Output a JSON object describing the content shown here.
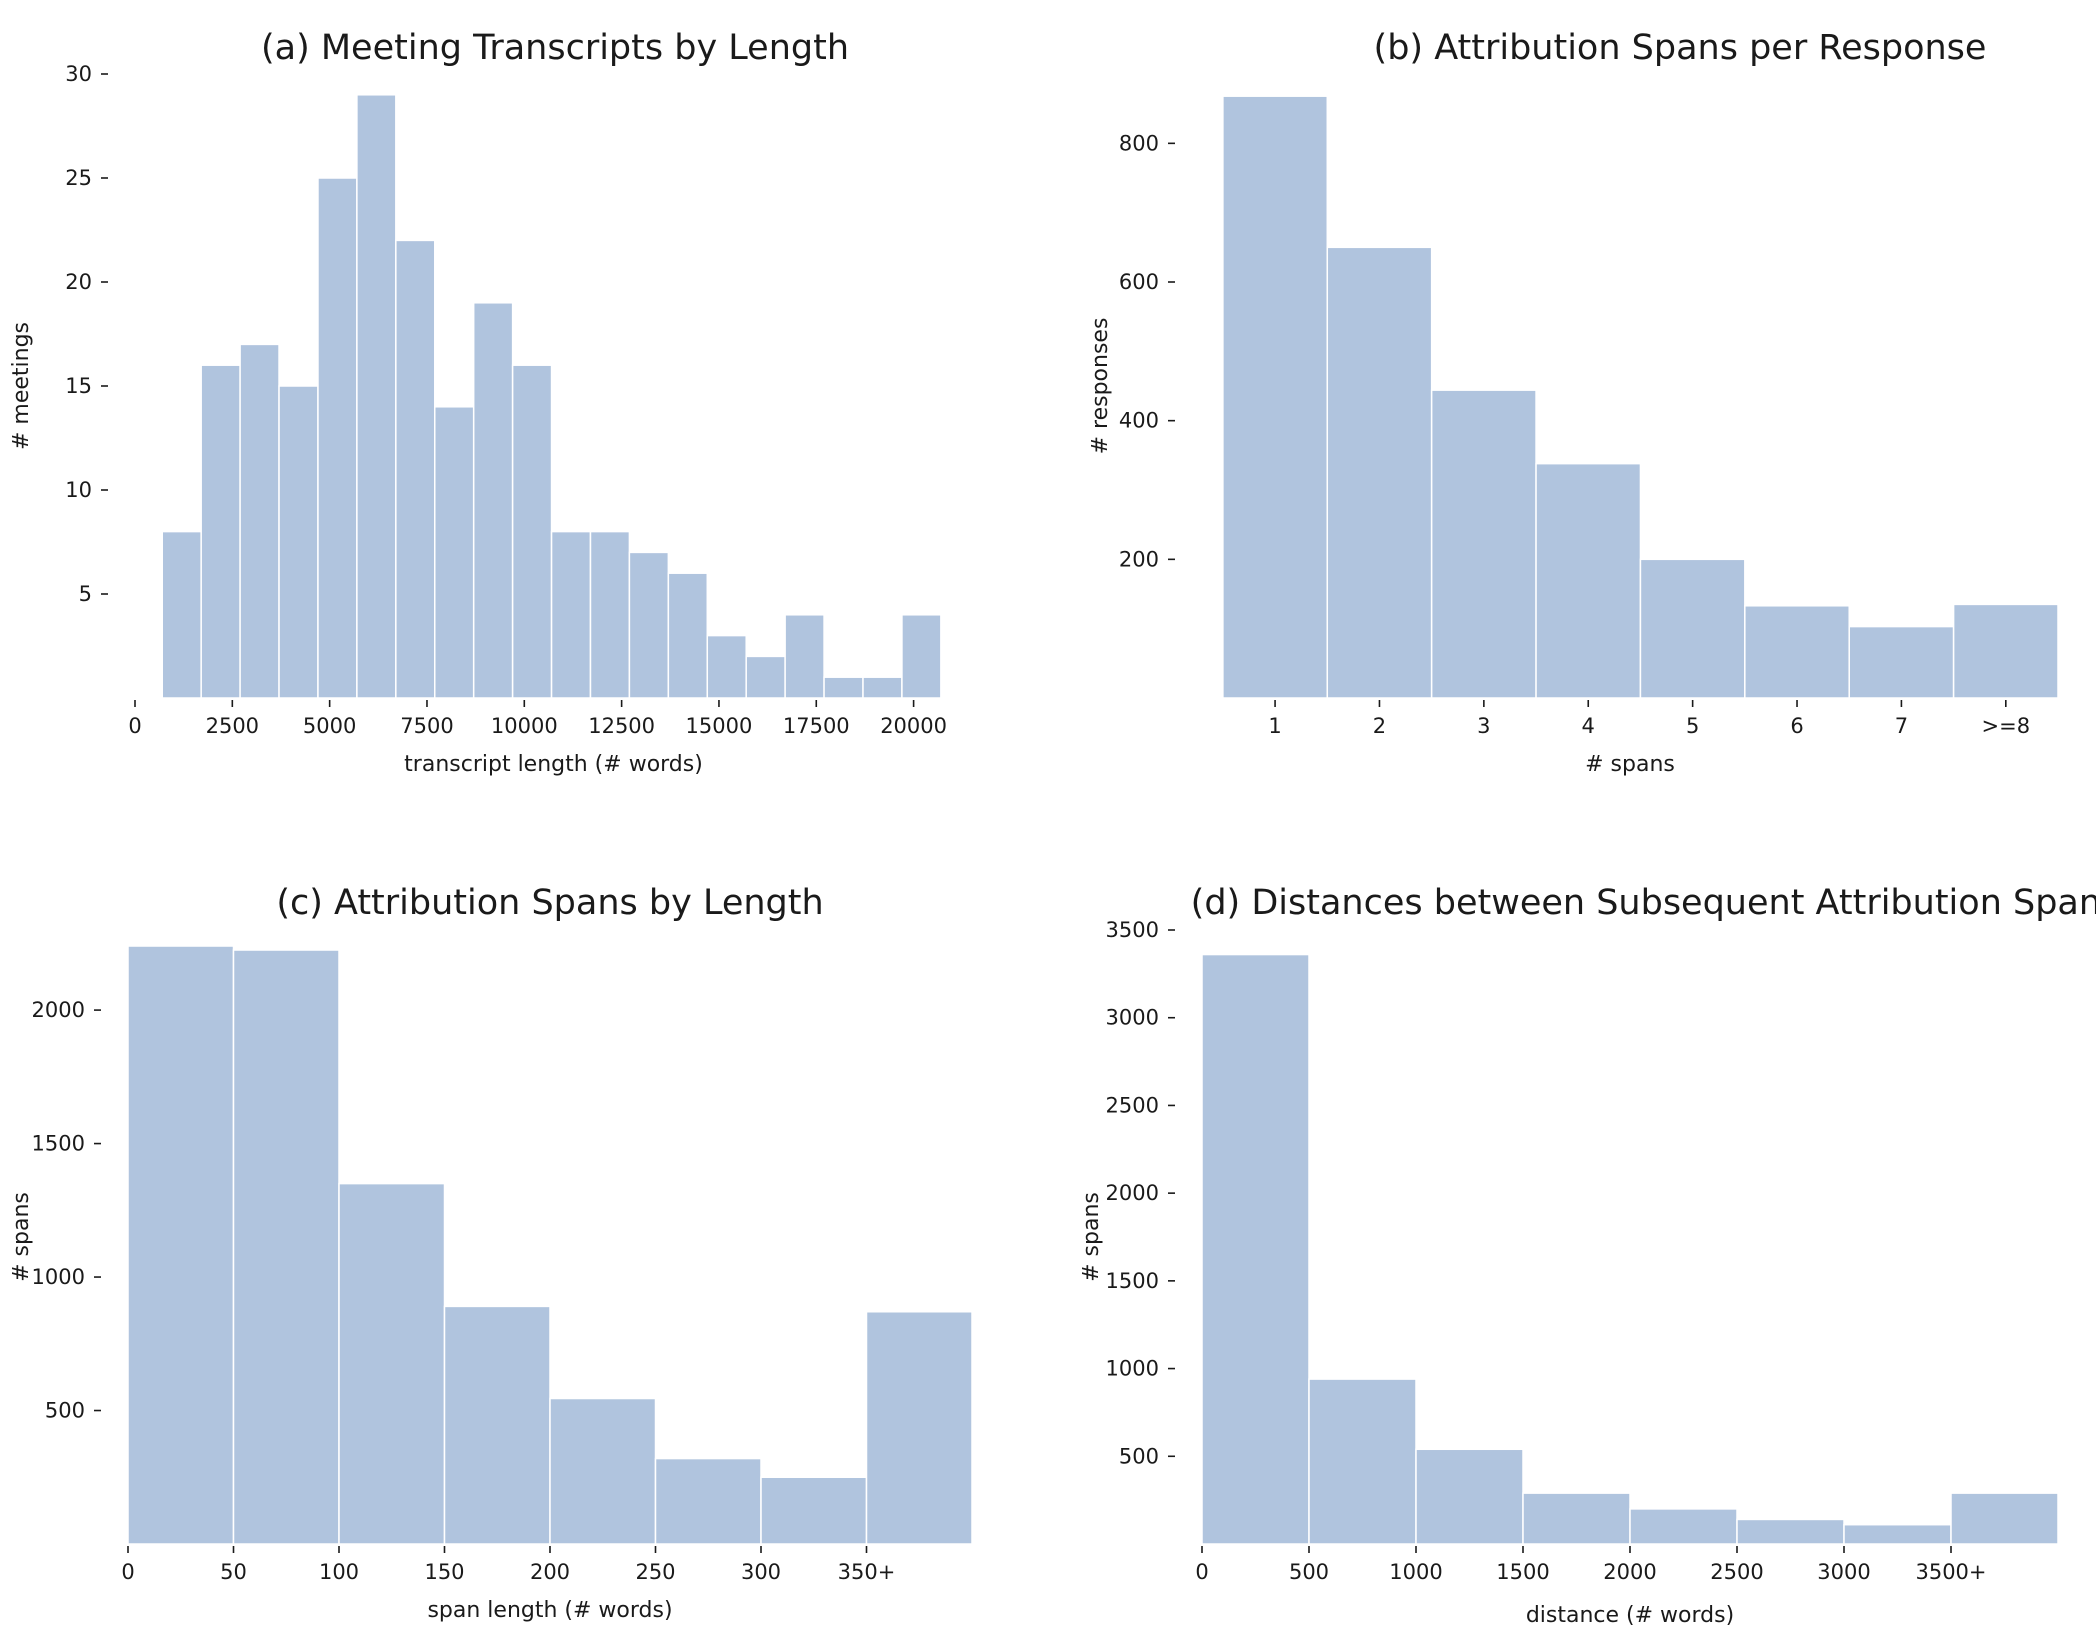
{
  "chart_data": [
    {
      "type": "bar",
      "title": "(a) Meeting Transcripts by Length",
      "xlabel": "transcript length (# words)",
      "ylabel": "# meetings",
      "bin_edges": [
        700,
        1700,
        2700,
        3700,
        4700,
        5700,
        6700,
        7700,
        8700,
        9700,
        10700,
        11700,
        12700,
        13700,
        14700,
        15700,
        16700,
        17700,
        18700,
        19700,
        20700
      ],
      "values": [
        8,
        16,
        17,
        15,
        25,
        29,
        22,
        14,
        19,
        16,
        8,
        8,
        7,
        6,
        3,
        2,
        4,
        1,
        1,
        4
      ],
      "xlim": [
        0,
        21500
      ],
      "ylim": [
        0,
        30
      ],
      "xticks": [
        0,
        2500,
        5000,
        7500,
        10000,
        12500,
        15000,
        17500,
        20000
      ],
      "xtick_labels": [
        "0",
        "2500",
        "5000",
        "7500",
        "10000",
        "12500",
        "15000",
        "17500",
        "20000"
      ],
      "yticks": [
        5,
        10,
        15,
        20,
        25,
        30
      ],
      "ytick_labels": [
        "5",
        "10",
        "15",
        "20",
        "25",
        "30"
      ],
      "grid": false,
      "color": "#b0c4de"
    },
    {
      "type": "bar",
      "title": "(b) Attribution Spans per Response",
      "xlabel": "# spans",
      "ylabel": "# responses",
      "bin_edges": [
        0.5,
        1.5,
        2.5,
        3.5,
        4.5,
        5.5,
        6.5,
        7.5,
        8.5
      ],
      "values": [
        868,
        650,
        444,
        338,
        200,
        133,
        103,
        135
      ],
      "xlim": [
        0.3,
        8.5
      ],
      "ylim": [
        0,
        900
      ],
      "xticks": [
        1,
        2,
        3,
        4,
        5,
        6,
        7,
        8
      ],
      "xtick_labels": [
        "1",
        "2",
        "3",
        "4",
        "5",
        "6",
        "7",
        ">=8"
      ],
      "yticks": [
        200,
        400,
        600,
        800
      ],
      "ytick_labels": [
        "200",
        "400",
        "600",
        "800"
      ],
      "grid": false,
      "color": "#b0c4de"
    },
    {
      "type": "bar",
      "title": "(c) Attribution Spans by Length",
      "xlabel": "span length (# words)",
      "ylabel": "# spans",
      "bin_edges": [
        0,
        50,
        100,
        150,
        200,
        250,
        300,
        350,
        400
      ],
      "values": [
        2240,
        2225,
        1350,
        890,
        545,
        320,
        250,
        870
      ],
      "xlim": [
        0,
        400
      ],
      "ylim": [
        0,
        2300
      ],
      "xticks": [
        0,
        50,
        100,
        150,
        200,
        250,
        300,
        350
      ],
      "xtick_labels": [
        "0",
        "50",
        "100",
        "150",
        "200",
        "250",
        "300",
        "350+"
      ],
      "yticks": [
        500,
        1000,
        1500,
        2000
      ],
      "ytick_labels": [
        "500",
        "1000",
        "1500",
        "2000"
      ],
      "grid": false,
      "color": "#b0c4de"
    },
    {
      "type": "bar",
      "title": "(d) Distances between Subsequent Attribution Spans",
      "xlabel": "distance (# words)",
      "ylabel": "# spans",
      "bin_edges": [
        0,
        500,
        1000,
        1500,
        2000,
        2500,
        3000,
        3500,
        4000
      ],
      "values": [
        3360,
        940,
        540,
        290,
        200,
        140,
        110,
        290
      ],
      "xlim": [
        0,
        4000
      ],
      "ylim": [
        0,
        3500
      ],
      "xticks": [
        0,
        500,
        1000,
        1500,
        2000,
        2500,
        3000,
        3500
      ],
      "xtick_labels": [
        "0",
        "500",
        "1000",
        "1500",
        "2000",
        "2500",
        "3000",
        "3500+"
      ],
      "yticks": [
        500,
        1000,
        1500,
        2000,
        2500,
        3000,
        3500
      ],
      "ytick_labels": [
        "500",
        "1000",
        "1500",
        "2000",
        "2500",
        "3000",
        "3500"
      ],
      "grid": false,
      "color": "#b0c4de"
    }
  ]
}
